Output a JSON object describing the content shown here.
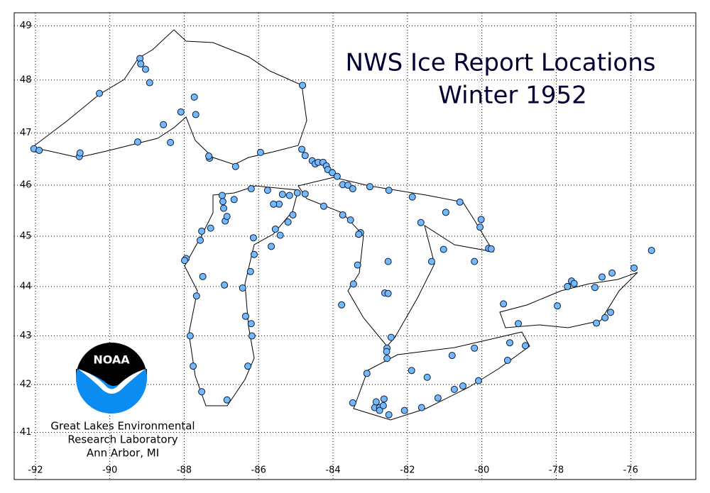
{
  "chart_data": {
    "type": "scatter",
    "title": "NWS Ice Report Locations",
    "subtitle": "Winter 1952",
    "logo_text": "NOAA",
    "credit": [
      "Great Lakes Environmental",
      "Research Laboratory",
      "Ann Arbor, MI"
    ],
    "color": "#73b9ff",
    "grid": true,
    "xlim": [
      -92.57,
      -74.25
    ],
    "ylim": [
      40.0,
      49.24
    ],
    "xticks": [
      -92,
      -90,
      -88,
      -86,
      -84,
      -82,
      -80,
      -78,
      -76
    ],
    "yticks": [
      41,
      42,
      43,
      44,
      45,
      46,
      47,
      48,
      49
    ],
    "x": [
      -92.04,
      -91.9,
      -90.82,
      -90.8,
      -90.28,
      -89.19,
      -89.17,
      -89.04,
      -88.93,
      -89.25,
      -88.56,
      -88.09,
      -87.69,
      -87.73,
      -88.37,
      -87.32,
      -87.34,
      -86.62,
      -85.95,
      -84.84,
      -84.75,
      -84.82,
      -84.56,
      -84.48,
      -84.4,
      -84.27,
      -84.18,
      -84.14,
      -84.02,
      -83.89,
      -83.74,
      -83.6,
      -83.47,
      -83.01,
      -82.5,
      -81.87,
      -80.97,
      -80.59,
      -80.02,
      -80.05,
      -79.82,
      -79.75,
      -80.2,
      -81.03,
      -81.35,
      -81.64,
      -82.52,
      -83.34,
      -83.45,
      -83.77,
      -83.26,
      -83.31,
      -83.53,
      -83.74,
      -84.25,
      -84.75,
      -84.96,
      -85.17,
      -85.36,
      -85.45,
      -85.6,
      -85.76,
      -86.2,
      -86.66,
      -86.98,
      -86.96,
      -86.94,
      -86.9,
      -86.85,
      -87.29,
      -87.53,
      -87.57,
      -87.95,
      -87.99,
      -87.5,
      -87.67,
      -87.84,
      -87.76,
      -87.53,
      -86.85,
      -86.29,
      -86.18,
      -86.2,
      -86.35,
      -86.43,
      -86.22,
      -86.12,
      -86.14,
      -85.66,
      -85.55,
      -85.42,
      -85.21,
      -85.08,
      -86.92,
      -82.61,
      -82.52,
      -82.44,
      -82.55,
      -82.56,
      -82.55,
      -83.09,
      -83.47,
      -82.88,
      -82.75,
      -82.65,
      -82.84,
      -82.63,
      -82.75,
      -82.5,
      -82.08,
      -81.62,
      -81.18,
      -80.74,
      -80.51,
      -80.09,
      -79.31,
      -78.83,
      -79.02,
      -79.25,
      -80.2,
      -80.8,
      -81.89,
      -81.47,
      -79.42,
      -77.97,
      -77.7,
      -77.59,
      -77.52,
      -76.96,
      -76.77,
      -76.5,
      -75.91,
      -75.44,
      -76.54,
      -76.69,
      -76.92
    ],
    "values": [
      46.7,
      46.67,
      46.55,
      46.62,
      47.75,
      48.4,
      48.3,
      48.2,
      47.95,
      46.83,
      47.16,
      47.4,
      47.35,
      47.68,
      46.82,
      46.52,
      46.56,
      46.36,
      46.63,
      46.69,
      46.57,
      47.9,
      46.47,
      46.41,
      46.44,
      46.44,
      46.37,
      46.3,
      46.24,
      46.17,
      46.01,
      46.0,
      45.93,
      45.97,
      45.9,
      45.77,
      45.47,
      45.67,
      45.33,
      45.18,
      44.76,
      44.75,
      44.5,
      44.74,
      44.5,
      45.27,
      44.5,
      44.43,
      44.05,
      43.63,
      45.07,
      45.04,
      45.32,
      45.42,
      45.59,
      45.83,
      45.85,
      45.8,
      45.82,
      45.63,
      45.63,
      45.9,
      45.93,
      45.72,
      45.8,
      45.68,
      45.55,
      45.3,
      45.39,
      45.16,
      45.1,
      44.92,
      44.56,
      44.52,
      44.2,
      43.81,
      43.0,
      42.38,
      41.85,
      41.68,
      42.38,
      43.0,
      43.25,
      43.4,
      43.97,
      44.3,
      44.64,
      44.97,
      44.8,
      45.14,
      45.02,
      45.28,
      45.42,
      44.03,
      43.87,
      43.86,
      42.97,
      42.75,
      42.68,
      42.54,
      42.23,
      41.62,
      41.52,
      41.52,
      41.56,
      41.64,
      41.7,
      41.46,
      41.37,
      41.46,
      41.52,
      41.72,
      41.9,
      41.97,
      42.08,
      42.5,
      42.8,
      43.25,
      42.86,
      42.75,
      42.6,
      42.29,
      42.15,
      43.65,
      43.61,
      44.0,
      44.11,
      44.06,
      43.98,
      44.19,
      44.27,
      44.37,
      44.72,
      43.48,
      43.37,
      43.26
    ]
  }
}
